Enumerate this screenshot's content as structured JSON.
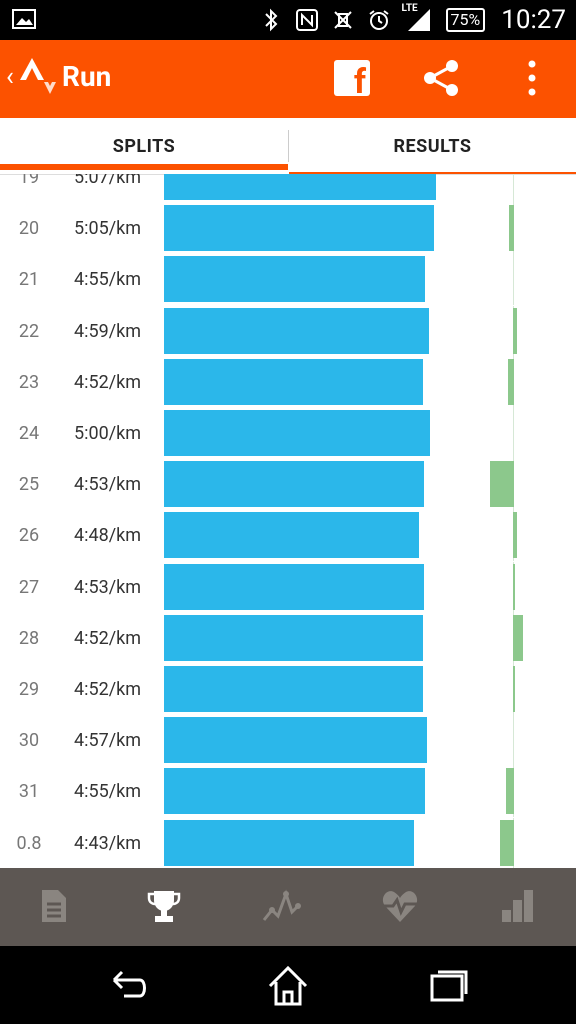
{
  "status_bar": {
    "network_label": "LTE",
    "battery_label": "75%",
    "time": "10:27",
    "icons": [
      "image-icon",
      "bluetooth-icon",
      "nfc-icon",
      "vibrate-icon",
      "alarm-icon",
      "signal-icon",
      "battery-icon"
    ]
  },
  "app_bar": {
    "title": "Run",
    "icons": [
      "back-chevron-icon",
      "strava-logo-icon",
      "facebook-icon",
      "share-icon",
      "more-vert-icon"
    ],
    "brand_color": "#fc5200"
  },
  "tabs": [
    {
      "label": "SPLITS",
      "selected": true
    },
    {
      "label": "RESULTS",
      "selected": false
    }
  ],
  "splits": [
    {
      "split": "19",
      "pace": "5:07/km",
      "pace_fraction": 0.925,
      "elev_change": 0.0
    },
    {
      "split": "20",
      "pace": "5:05/km",
      "pace_fraction": 0.919,
      "elev_change": -0.2
    },
    {
      "split": "21",
      "pace": "4:55/km",
      "pace_fraction": 0.889,
      "elev_change": 0.0
    },
    {
      "split": "22",
      "pace": "4:59/km",
      "pace_fraction": 0.901,
      "elev_change": 0.15
    },
    {
      "split": "23",
      "pace": "4:52/km",
      "pace_fraction": 0.88,
      "elev_change": -0.25
    },
    {
      "split": "24",
      "pace": "5:00/km",
      "pace_fraction": 0.904,
      "elev_change": 0.0
    },
    {
      "split": "25",
      "pace": "4:53/km",
      "pace_fraction": 0.883,
      "elev_change": -1.0
    },
    {
      "split": "26",
      "pace": "4:48/km",
      "pace_fraction": 0.867,
      "elev_change": 0.15
    },
    {
      "split": "27",
      "pace": "4:53/km",
      "pace_fraction": 0.883,
      "elev_change": 0.1
    },
    {
      "split": "28",
      "pace": "4:52/km",
      "pace_fraction": 0.88,
      "elev_change": 0.4
    },
    {
      "split": "29",
      "pace": "4:52/km",
      "pace_fraction": 0.88,
      "elev_change": 0.05
    },
    {
      "split": "30",
      "pace": "4:57/km",
      "pace_fraction": 0.895,
      "elev_change": 0.0
    },
    {
      "split": "31",
      "pace": "4:55/km",
      "pace_fraction": 0.889,
      "elev_change": -0.35
    },
    {
      "split": "0.8",
      "pace": "4:43/km",
      "pace_fraction": 0.852,
      "elev_change": -0.6
    }
  ],
  "colors": {
    "pace_bar": "#2bb7ea",
    "elevation_bar": "#8cc88c",
    "nav_bg": "#5d5753"
  },
  "bottom_nav": [
    {
      "icon": "overview-document-icon",
      "active": false
    },
    {
      "icon": "trophy-icon",
      "active": true
    },
    {
      "icon": "analysis-chart-icon",
      "active": false
    },
    {
      "icon": "heart-rate-icon",
      "active": false
    },
    {
      "icon": "bar-chart-icon",
      "active": false
    }
  ],
  "system_nav": [
    "back-icon",
    "home-icon",
    "recents-icon"
  ]
}
